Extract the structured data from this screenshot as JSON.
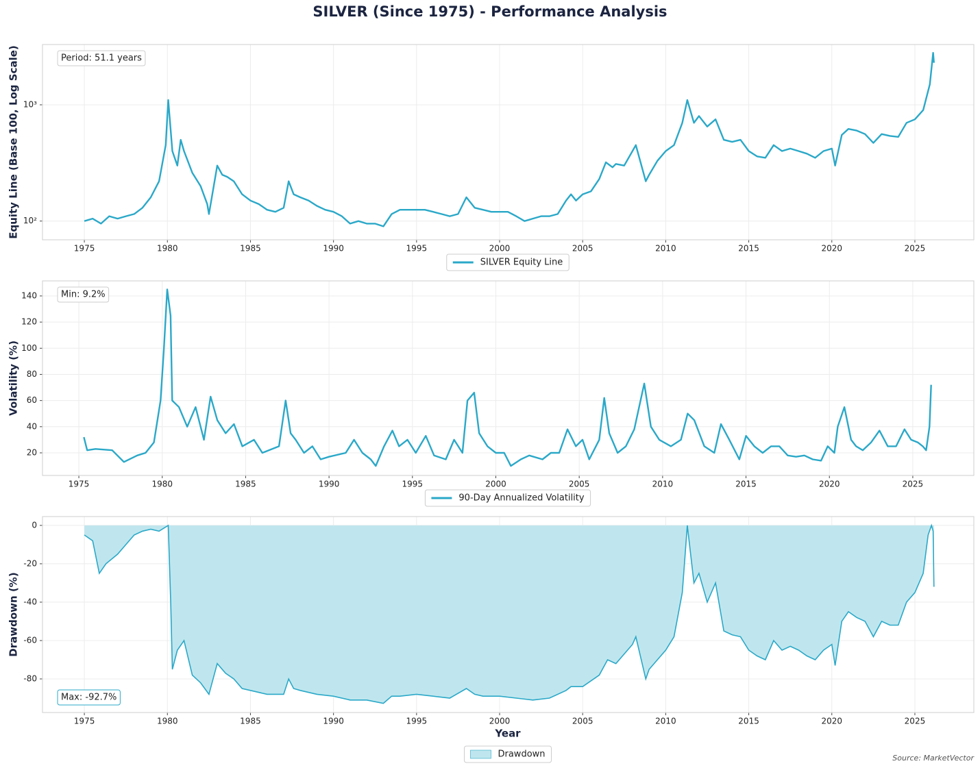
{
  "title": "SILVER (Since 1975) - Performance Analysis",
  "source": "Source: MarketVector",
  "chart_data": [
    {
      "type": "line",
      "log_scale": true,
      "ylabel": "Equity Line (Base 100, Log Scale)",
      "annotation": "Period: 51.1 years",
      "annotation_edge_color": "#cccccc",
      "grid": true,
      "legend": "below",
      "xlim": [
        1972.48,
        2028.55
      ],
      "ylim": [
        69,
        3300
      ],
      "xticks": [
        1975,
        1980,
        1985,
        1990,
        1995,
        2000,
        2005,
        2010,
        2015,
        2020,
        2025
      ],
      "yticks": [
        {
          "value": 100,
          "label": "10²"
        },
        {
          "value": 1000,
          "label": "10³"
        }
      ],
      "series": [
        {
          "name": "SILVER Equity Line",
          "color": "#2aa8c8",
          "x": [
            1975,
            1975.5,
            1976,
            1976.5,
            1977,
            1977.5,
            1978,
            1978.5,
            1979,
            1979.5,
            1979.9,
            1980.05,
            1980.3,
            1980.6,
            1980.8,
            1981,
            1981.5,
            1982,
            1982.4,
            1982.5,
            1983,
            1983.3,
            1983.6,
            1984,
            1984.5,
            1985,
            1985.5,
            1986,
            1986.5,
            1987,
            1987.3,
            1987.6,
            1988,
            1988.5,
            1989,
            1989.5,
            1990,
            1990.5,
            1991,
            1991.5,
            1992,
            1992.5,
            1993,
            1993.5,
            1994,
            1994.5,
            1995,
            1995.5,
            1996,
            1996.5,
            1997,
            1997.5,
            1998,
            1998.5,
            1999,
            1999.5,
            2000,
            2000.5,
            2001,
            2001.5,
            2002,
            2002.5,
            2003,
            2003.5,
            2004,
            2004.3,
            2004.6,
            2005,
            2005.5,
            2006,
            2006.4,
            2006.8,
            2007,
            2007.5,
            2008,
            2008.2,
            2008.8,
            2009,
            2009.5,
            2010,
            2010.5,
            2011,
            2011.3,
            2011.7,
            2012,
            2012.5,
            2013,
            2013.5,
            2014,
            2014.5,
            2015,
            2015.5,
            2016,
            2016.5,
            2017,
            2017.5,
            2018,
            2018.5,
            2019,
            2019.5,
            2020,
            2020.2,
            2020.6,
            2021,
            2021.5,
            2022,
            2022.5,
            2023,
            2023.5,
            2024,
            2024.5,
            2025,
            2025.5,
            2025.9,
            2026.1,
            2026.15
          ],
          "values": [
            100,
            105,
            95,
            110,
            105,
            110,
            115,
            130,
            160,
            220,
            450,
            1100,
            400,
            300,
            500,
            400,
            260,
            200,
            140,
            115,
            300,
            250,
            240,
            220,
            170,
            150,
            140,
            125,
            120,
            130,
            220,
            170,
            160,
            150,
            135,
            125,
            120,
            110,
            95,
            100,
            95,
            95,
            90,
            115,
            125,
            125,
            125,
            125,
            120,
            115,
            110,
            115,
            160,
            130,
            125,
            120,
            120,
            120,
            110,
            100,
            105,
            110,
            110,
            115,
            150,
            170,
            150,
            170,
            180,
            230,
            320,
            290,
            310,
            300,
            400,
            450,
            220,
            250,
            330,
            400,
            450,
            700,
            1100,
            700,
            800,
            650,
            750,
            500,
            480,
            500,
            400,
            360,
            350,
            450,
            400,
            420,
            400,
            380,
            350,
            400,
            420,
            300,
            550,
            620,
            600,
            560,
            470,
            560,
            540,
            530,
            700,
            750,
            900,
            1500,
            2800,
            2300
          ]
        }
      ]
    },
    {
      "type": "line",
      "log_scale": false,
      "ylabel": "Volatility (%)",
      "annotation": "Min: 9.2%",
      "annotation_edge_color": "#cccccc",
      "grid": true,
      "legend": "below",
      "xlim": [
        1972.82,
        2028.66
      ],
      "ylim": [
        2.7,
        151.5
      ],
      "xticks": [
        1975,
        1980,
        1985,
        1990,
        1995,
        2000,
        2005,
        2010,
        2015,
        2020,
        2025
      ],
      "yticks": [
        20,
        40,
        60,
        80,
        100,
        120,
        140
      ],
      "series": [
        {
          "name": "90-Day Annualized Volatility",
          "color": "#2aa8c8",
          "x": [
            1975.3,
            1975.5,
            1976,
            1977,
            1977.7,
            1978.5,
            1979,
            1979.5,
            1979.9,
            1980.1,
            1980.3,
            1980.5,
            1980.6,
            1981,
            1981.5,
            1982,
            1982.5,
            1982.9,
            1983.3,
            1983.8,
            1984.3,
            1984.8,
            1985.5,
            1986,
            1987,
            1987.4,
            1987.7,
            1988,
            1988.5,
            1989,
            1989.5,
            1990,
            1991,
            1991.5,
            1992,
            1992.5,
            1992.8,
            1993.3,
            1993.8,
            1994.2,
            1994.7,
            1995.2,
            1995.8,
            1996.3,
            1997,
            1997.5,
            1998,
            1998.3,
            1998.7,
            1999,
            1999.5,
            2000,
            2000.5,
            2000.9,
            2001.5,
            2002,
            2002.8,
            2003.3,
            2003.8,
            2004.3,
            2004.8,
            2005.2,
            2005.6,
            2006.2,
            2006.5,
            2006.8,
            2007.3,
            2007.8,
            2008.3,
            2008.9,
            2009.3,
            2009.8,
            2010.5,
            2011.1,
            2011.5,
            2011.9,
            2012.5,
            2013.1,
            2013.5,
            2014,
            2014.6,
            2015,
            2015.5,
            2016,
            2016.5,
            2017,
            2017.5,
            2018,
            2018.5,
            2019,
            2019.5,
            2019.9,
            2020.3,
            2020.5,
            2020.9,
            2021.3,
            2021.6,
            2022,
            2022.5,
            2023,
            2023.5,
            2024,
            2024.5,
            2024.9,
            2025.3,
            2025.6,
            2025.8,
            2026,
            2026.1
          ],
          "values": [
            32,
            22,
            23,
            22,
            13,
            18,
            20,
            28,
            60,
            100,
            145,
            125,
            60,
            55,
            40,
            55,
            30,
            63,
            45,
            35,
            42,
            25,
            30,
            20,
            25,
            60,
            35,
            30,
            20,
            25,
            15,
            17,
            20,
            30,
            20,
            15,
            10,
            25,
            37,
            25,
            30,
            20,
            33,
            18,
            15,
            30,
            20,
            60,
            66,
            35,
            25,
            20,
            20,
            10,
            15,
            18,
            15,
            20,
            20,
            38,
            25,
            30,
            15,
            30,
            62,
            35,
            20,
            25,
            38,
            73,
            40,
            30,
            25,
            30,
            50,
            45,
            25,
            20,
            42,
            30,
            15,
            33,
            25,
            20,
            25,
            25,
            18,
            17,
            18,
            15,
            14,
            25,
            20,
            40,
            55,
            30,
            25,
            22,
            28,
            37,
            25,
            25,
            38,
            30,
            28,
            25,
            22,
            40,
            72
          ]
        }
      ]
    },
    {
      "type": "area",
      "log_scale": false,
      "ylabel": "Drawdown (%)",
      "xlabel": "Year",
      "annotation": "Max: -92.7%",
      "annotation_edge_color": "#2aa8c8",
      "grid": true,
      "legend": "below",
      "xlim": [
        1972.48,
        2028.55
      ],
      "ylim": [
        -97.5,
        4.6
      ],
      "xticks": [
        1975,
        1980,
        1985,
        1990,
        1995,
        2000,
        2005,
        2010,
        2015,
        2020,
        2025
      ],
      "yticks": [
        -80,
        -60,
        -40,
        -20,
        0
      ],
      "series": [
        {
          "name": "Drawdown",
          "color": "#2aa8c8",
          "fill_color": "#bfe6ee",
          "x": [
            1975,
            1975.5,
            1975.9,
            1976.3,
            1977,
            1977.5,
            1978,
            1978.5,
            1979,
            1979.5,
            1980.05,
            1980.2,
            1980.3,
            1980.6,
            1981,
            1981.5,
            1982,
            1982.5,
            1983,
            1983.5,
            1984,
            1984.5,
            1985,
            1986,
            1987,
            1987.3,
            1987.6,
            1988,
            1989,
            1990,
            1991,
            1992,
            1993,
            1993.5,
            1994,
            1995,
            1996,
            1997,
            1998,
            1998.5,
            1999,
            2000,
            2001,
            2002,
            2003,
            2004,
            2004.3,
            2005,
            2006,
            2006.5,
            2007,
            2008,
            2008.2,
            2008.8,
            2009,
            2009.5,
            2010,
            2010.5,
            2011,
            2011.3,
            2011.7,
            2012,
            2012.5,
            2013,
            2013.5,
            2014,
            2014.5,
            2015,
            2015.5,
            2016,
            2016.5,
            2017,
            2017.5,
            2018,
            2018.5,
            2019,
            2019.5,
            2020,
            2020.2,
            2020.6,
            2021,
            2021.5,
            2022,
            2022.5,
            2023,
            2023.5,
            2024,
            2024.5,
            2025,
            2025.5,
            2025.8,
            2026,
            2026.1,
            2026.15
          ],
          "values": [
            -5,
            -8,
            -25,
            -20,
            -15,
            -10,
            -5,
            -3,
            -2,
            -3,
            0,
            -40,
            -75,
            -65,
            -60,
            -78,
            -82,
            -88,
            -72,
            -77,
            -80,
            -85,
            -86,
            -88,
            -88,
            -80,
            -85,
            -86,
            -88,
            -89,
            -91,
            -91,
            -92.7,
            -89,
            -89,
            -88,
            -89,
            -90,
            -85,
            -88,
            -89,
            -89,
            -90,
            -91,
            -90,
            -86,
            -84,
            -84,
            -78,
            -70,
            -72,
            -62,
            -58,
            -80,
            -75,
            -70,
            -65,
            -58,
            -35,
            0,
            -30,
            -25,
            -40,
            -30,
            -55,
            -57,
            -58,
            -65,
            -68,
            -70,
            -60,
            -65,
            -63,
            -65,
            -68,
            -70,
            -65,
            -62,
            -73,
            -50,
            -45,
            -48,
            -50,
            -58,
            -50,
            -52,
            -52,
            -40,
            -35,
            -25,
            -5,
            0,
            -3,
            -32
          ]
        }
      ]
    }
  ]
}
